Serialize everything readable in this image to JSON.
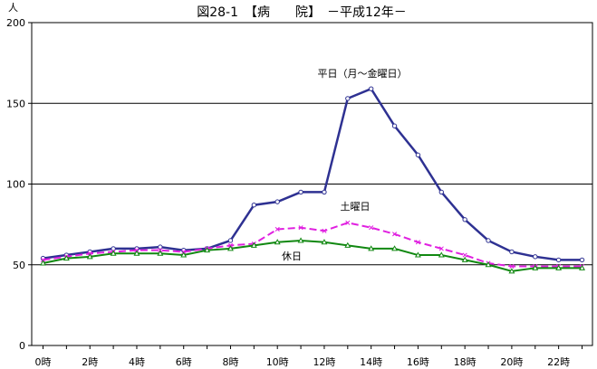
{
  "chart_data": {
    "type": "line",
    "title": "図28-1　【病　　院】　－平成12年－",
    "ylabel": "人",
    "ylim": [
      0,
      200
    ],
    "yticks": [
      0,
      50,
      100,
      150,
      200
    ],
    "gridlines_y": [
      50,
      100,
      150
    ],
    "x": [
      0,
      1,
      2,
      3,
      4,
      5,
      6,
      7,
      8,
      9,
      10,
      11,
      12,
      13,
      14,
      15,
      16,
      17,
      18,
      19,
      20,
      21,
      22,
      23
    ],
    "xtick_labels": [
      "0時",
      "2時",
      "4時",
      "6時",
      "8時",
      "10時",
      "12時",
      "14時",
      "16時",
      "18時",
      "20時",
      "22時"
    ],
    "xtick_values": [
      0,
      2,
      4,
      6,
      8,
      10,
      12,
      14,
      16,
      18,
      20,
      22
    ],
    "series": [
      {
        "name": "平日（月～金曜日）",
        "color": "#2e3192",
        "marker": "circle-open",
        "dash": "solid",
        "values": [
          54,
          56,
          58,
          60,
          60,
          61,
          59,
          60,
          65,
          87,
          89,
          95,
          95,
          153,
          159,
          136,
          118,
          95,
          78,
          65,
          58,
          55,
          53,
          53
        ]
      },
      {
        "name": "土曜日",
        "color": "#e020e0",
        "marker": "x",
        "dash": "dashed",
        "values": [
          53,
          55,
          57,
          58,
          59,
          59,
          58,
          60,
          62,
          63,
          72,
          73,
          71,
          76,
          73,
          69,
          64,
          60,
          56,
          51,
          49,
          49,
          49,
          49
        ]
      },
      {
        "name": "休日",
        "color": "#118811",
        "marker": "triangle-open",
        "dash": "solid",
        "values": [
          51,
          54,
          55,
          57,
          57,
          57,
          56,
          59,
          60,
          62,
          64,
          65,
          64,
          62,
          60,
          60,
          56,
          56,
          53,
          50,
          46,
          48,
          48,
          48
        ]
      }
    ],
    "annotations": [
      {
        "text": "平日（月～金曜日）",
        "series": 0
      },
      {
        "text": "土曜日",
        "series": 1
      },
      {
        "text": "休日",
        "series": 2
      }
    ]
  }
}
